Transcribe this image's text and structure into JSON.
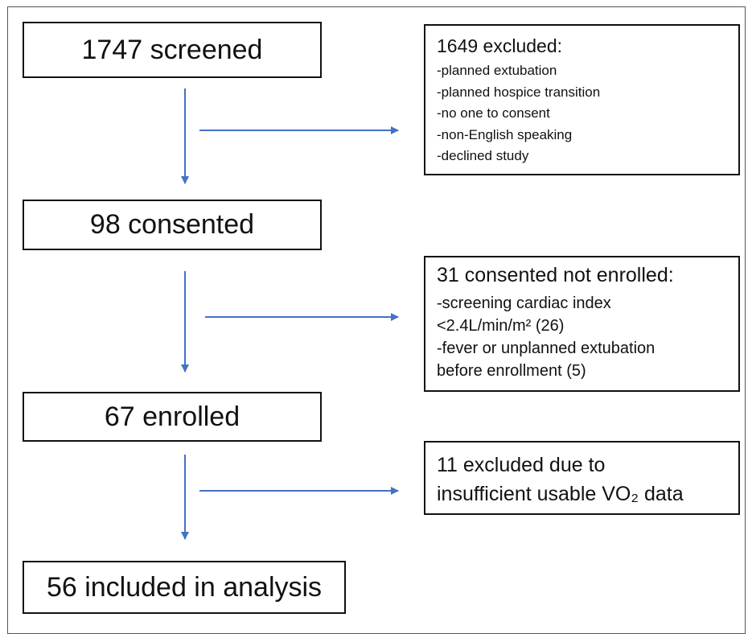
{
  "nodes": [
    {
      "label": "1747 screened"
    },
    {
      "label": "98 consented"
    },
    {
      "label": "67 enrolled"
    },
    {
      "label": "56 included in analysis"
    }
  ],
  "exclusions": [
    {
      "title": "1649 excluded:",
      "lines": [
        "-planned extubation",
        "-planned hospice transition",
        "-no one to consent",
        "-non-English speaking",
        "-declined study"
      ]
    },
    {
      "title": "31 consented not enrolled:",
      "lines": [
        "-screening cardiac index",
        "<2.4L/min/m² (26)",
        "-fever or unplanned extubation",
        "before enrollment (5)"
      ]
    },
    {
      "lines": [
        "11 excluded due to",
        "insufficient usable VO₂ data"
      ]
    }
  ]
}
